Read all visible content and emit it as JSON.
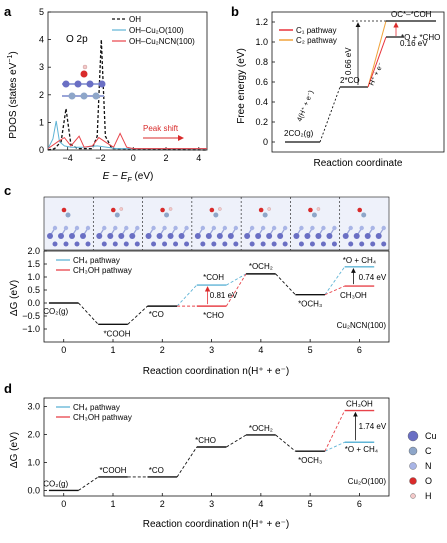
{
  "panels": {
    "a": {
      "letter": "a",
      "ylabel": "PDOS (states eV",
      "ylabel_sup": "−1",
      "ylabel_end": ")",
      "xlabel": "E − E",
      "xlabel_sub": "F",
      "xlabel_unit": " (eV)",
      "orbital_label": "O 2p",
      "annotation": "Peak shift",
      "legend": [
        "OH",
        "OH–Cu₂O(100)",
        "OH–Cu₂NCN(100)"
      ]
    },
    "b": {
      "letter": "b",
      "ylabel": "Free energy (eV)",
      "xlabel": "Reaction coordinate",
      "legend": [
        "C₁ pathway",
        "C₂ pathway"
      ],
      "labels": {
        "co2": "2CO₂(g)",
        "step4": "4(H⁺ + e⁻)",
        "co": "2*CO",
        "ococoh": "OC*–*COH",
        "h": "H⁺ + e⁻",
        "o_cho": "*O + *CHO",
        "gap_016": "0.16 eV",
        "gap_066": "0.66 eV"
      }
    },
    "c": {
      "letter": "c",
      "ylabel": "ΔG (eV)",
      "xlabel": "Reaction coordination n(H⁺ + e⁻)",
      "surface": "Cu₂NCN(100)",
      "legend": [
        "CH₄ pathway",
        "CH₃OH pathway"
      ],
      "labels": {
        "co2": "CO₂(g)",
        "cooh": "*COOH",
        "co": "*CO",
        "coh": "*COH",
        "cho": "*CHO",
        "och2": "*OCH₂",
        "och3": "*OCH₃",
        "o_ch4": "*O + CH₄",
        "ch3oh": "CH₃OH",
        "gap_081": "0.81 eV",
        "gap_074": "0.74 eV"
      }
    },
    "d": {
      "letter": "d",
      "ylabel": "ΔG (eV)",
      "xlabel": "Reaction coordination n(H⁺ + e⁻)",
      "surface": "Cu₂O(100)",
      "legend": [
        "CH₄ pathway",
        "CH₃OH pathway"
      ],
      "labels": {
        "co2": "CO₂(g)",
        "cooh": "*COOH",
        "co": "*CO",
        "cho": "*CHO",
        "och2": "*OCH₂",
        "och3": "*OCH₃",
        "o_ch4": "*O + CH₄",
        "ch3oh": "CH₃OH",
        "gap_174": "1.74 eV"
      }
    }
  },
  "atom_legend": [
    "Cu",
    "C",
    "N",
    "O",
    "H"
  ],
  "colors": {
    "ch4": "#5fb4d6",
    "ch3oh": "#e8434a",
    "c1": "#e8333a",
    "c2": "#f0a23a",
    "cu": "#6a6fc4",
    "c": "#8ea6c9",
    "n": "#a9b5e6",
    "o": "#d92b2b",
    "h": "#f3c9c9"
  },
  "chart_data": [
    {
      "panel": "a",
      "type": "line",
      "xlabel": "E − E_F (eV)",
      "ylabel": "PDOS (states eV−1)",
      "xlim": [
        -5.2,
        4.5
      ],
      "ylim": [
        0,
        5
      ],
      "xticks": [
        -4,
        -2,
        0,
        2,
        4
      ],
      "yticks": [
        0,
        1,
        2,
        3,
        4,
        5
      ],
      "series": [
        {
          "name": "OH",
          "points": [
            [
              -5.2,
              0
            ],
            [
              -4.8,
              0.05
            ],
            [
              -4.4,
              0.3
            ],
            [
              -4.1,
              1.5
            ],
            [
              -3.8,
              0.2
            ],
            [
              -3.4,
              0.05
            ],
            [
              -2.5,
              0.05
            ],
            [
              -2.2,
              0.5
            ],
            [
              -1.95,
              4.0
            ],
            [
              -1.7,
              0.5
            ],
            [
              -1.3,
              0.05
            ],
            [
              4.5,
              0
            ]
          ]
        },
        {
          "name": "OH–Cu2O(100)",
          "points": [
            [
              -5.2,
              0.05
            ],
            [
              -4.9,
              0.4
            ],
            [
              -4.7,
              1.05
            ],
            [
              -4.5,
              0.3
            ],
            [
              -4.2,
              0.15
            ],
            [
              -3.8,
              0.1
            ],
            [
              -3.0,
              0.1
            ],
            [
              -2.2,
              0.15
            ],
            [
              -1.6,
              0.1
            ],
            [
              -1.0,
              0.05
            ],
            [
              4.5,
              0.05
            ]
          ]
        },
        {
          "name": "OH–Cu2NCN(100)",
          "points": [
            [
              -5.2,
              0.05
            ],
            [
              -4.6,
              0.3
            ],
            [
              -4.2,
              0.45
            ],
            [
              -3.8,
              0.15
            ],
            [
              -3.3,
              0.5
            ],
            [
              -3.0,
              0.1
            ],
            [
              -2.5,
              0.15
            ],
            [
              -2.1,
              0.45
            ],
            [
              -1.6,
              0.25
            ],
            [
              -1.2,
              0.1
            ],
            [
              -0.8,
              0.6
            ],
            [
              -0.4,
              0.1
            ],
            [
              0,
              0.05
            ],
            [
              4.5,
              0.05
            ]
          ]
        }
      ]
    },
    {
      "panel": "b",
      "type": "line",
      "xlabel": "Reaction coordinate",
      "ylabel": "Free energy (eV)",
      "ylim": [
        -0.1,
        1.3
      ],
      "yticks": [
        0,
        0.2,
        0.4,
        0.6,
        0.8,
        1.0,
        1.2
      ],
      "levels": [
        {
          "label": "2CO2(g)",
          "y": 0
        },
        {
          "label": "2*CO",
          "y": 0.55
        },
        {
          "label": "OC*–*COH",
          "y": 1.21
        },
        {
          "label": "*O + *CHO",
          "y": 1.05
        }
      ],
      "series": [
        {
          "name": "C1 pathway",
          "from": "2*CO",
          "to": "*O + *CHO"
        },
        {
          "name": "C2 pathway",
          "from": "2*CO",
          "to": "OC*–*COH"
        }
      ]
    },
    {
      "panel": "c",
      "type": "line",
      "xlabel": "Reaction coordination n(H+ + e−)",
      "ylabel": "ΔG (eV)",
      "xlim": [
        -0.4,
        6.6
      ],
      "ylim": [
        -1.5,
        2.0
      ],
      "xticks": [
        0,
        1,
        2,
        3,
        4,
        5,
        6
      ],
      "yticks": [
        -1.0,
        -0.5,
        0.0,
        0.5,
        1.0,
        1.5,
        2.0
      ],
      "levels": [
        {
          "n": 0,
          "label": "CO2(g)",
          "y": 0.0
        },
        {
          "n": 1,
          "label": "*COOH",
          "y": -0.82
        },
        {
          "n": 2,
          "label": "*CO",
          "y": -0.12
        },
        {
          "n": 3,
          "label": "*COH",
          "y": 0.69
        },
        {
          "n": 3,
          "label": "*CHO",
          "y": -0.12
        },
        {
          "n": 4,
          "label": "*OCH2",
          "y": 1.12
        },
        {
          "n": 5,
          "label": "*OCH3",
          "y": 0.32
        },
        {
          "n": 6,
          "label": "*O + CH4",
          "y": 1.39
        },
        {
          "n": 6,
          "label": "CH3OH",
          "y": 0.65
        }
      ],
      "series": [
        {
          "name": "CH4 pathway",
          "path": [
            0,
            -0.82,
            -0.12,
            0.69,
            1.12,
            0.32,
            1.39
          ]
        },
        {
          "name": "CH3OH pathway",
          "path": [
            0,
            -0.82,
            -0.12,
            -0.12,
            1.12,
            0.32,
            0.65
          ]
        }
      ]
    },
    {
      "panel": "d",
      "type": "line",
      "xlabel": "Reaction coordination n(H+ + e−)",
      "ylabel": "ΔG (eV)",
      "xlim": [
        -0.4,
        6.6
      ],
      "ylim": [
        -0.2,
        3.3
      ],
      "xticks": [
        0,
        1,
        2,
        3,
        4,
        5,
        6
      ],
      "yticks": [
        0.0,
        1.0,
        2.0,
        3.0
      ],
      "levels": [
        {
          "n": 0,
          "label": "CO2(g)",
          "y": 0.0
        },
        {
          "n": 1,
          "label": "*COOH",
          "y": 0.48
        },
        {
          "n": 2,
          "label": "*CO",
          "y": 0.48
        },
        {
          "n": 3,
          "label": "*CHO",
          "y": 1.55
        },
        {
          "n": 4,
          "label": "*OCH2",
          "y": 1.98
        },
        {
          "n": 5,
          "label": "*OCH3",
          "y": 1.4
        },
        {
          "n": 6,
          "label": "CH3OH",
          "y": 2.85
        },
        {
          "n": 6,
          "label": "*O + CH4",
          "y": 1.72
        }
      ],
      "series": [
        {
          "name": "CH4 pathway",
          "path": [
            0,
            0.48,
            0.48,
            1.55,
            1.98,
            1.4,
            1.72
          ]
        },
        {
          "name": "CH3OH pathway",
          "path": [
            0,
            0.48,
            0.48,
            1.55,
            1.98,
            1.4,
            2.85
          ]
        }
      ]
    }
  ]
}
